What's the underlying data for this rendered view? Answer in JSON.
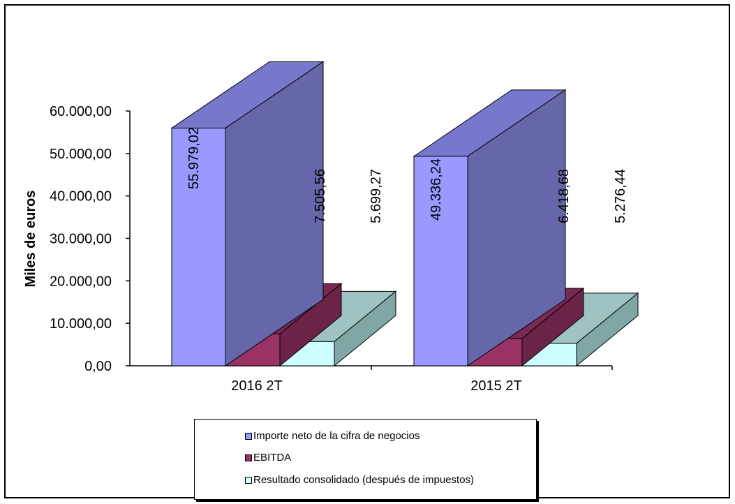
{
  "chart_data": {
    "type": "bar",
    "categories": [
      "2016 2T",
      "2015 2T"
    ],
    "series": [
      {
        "name": "Importe neto de la cifra de negocios",
        "values": [
          55979.02,
          49336.24
        ],
        "labels": [
          "55.979,02",
          "49.336,24"
        ],
        "color": "#9999FF",
        "side_color": "#6666AA",
        "top_color": "#7777CC"
      },
      {
        "name": "EBITDA",
        "values": [
          7505.56,
          6418.68
        ],
        "labels": [
          "7.505,56",
          "6.418,68"
        ],
        "color": "#993366",
        "side_color": "#6B2347",
        "top_color": "#7A2952"
      },
      {
        "name": "Resultado consolidado (después de impuestos)",
        "values": [
          5699.27,
          5276.44
        ],
        "labels": [
          "5.699,27",
          "5.276,44"
        ],
        "color": "#CCFFFF",
        "side_color": "#80A6A6",
        "top_color": "#9FC3C3"
      }
    ],
    "ylabel": "Miles de euros",
    "ylim": [
      0,
      60000
    ],
    "yticks": [
      0,
      10000,
      20000,
      30000,
      40000,
      50000,
      60000
    ],
    "ytick_labels": [
      "0,00",
      "10.000,00",
      "20.000,00",
      "30.000,00",
      "40.000,00",
      "50.000,00",
      "60.000,00"
    ],
    "legend_position": "bottom",
    "style": "3d-column"
  }
}
